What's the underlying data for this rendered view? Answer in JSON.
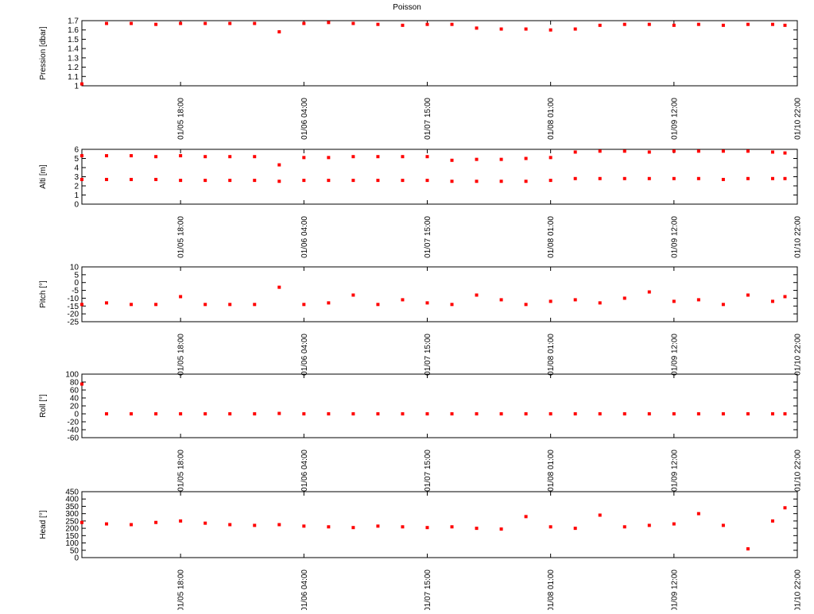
{
  "chart_data": [
    {
      "type": "scatter",
      "title": "Poisson",
      "ylabel": "Pression [dbar]",
      "x": [
        0.2,
        0.4,
        0.6,
        0.8,
        1.0,
        1.2,
        1.4,
        1.6,
        1.8,
        2.0,
        2.2,
        2.4,
        2.6,
        2.8,
        3.0,
        3.2,
        3.4,
        3.6,
        3.8,
        4.0,
        4.2,
        4.4,
        4.6,
        4.8,
        5.0,
        5.2,
        5.4,
        5.6,
        5.8,
        5.9
      ],
      "series": [
        {
          "color": "#ff0000",
          "values": [
            1.02,
            1.67,
            1.67,
            1.66,
            1.67,
            1.67,
            1.67,
            1.67,
            1.58,
            1.67,
            1.68,
            1.67,
            1.66,
            1.65,
            1.66,
            1.66,
            1.62,
            1.61,
            1.61,
            1.6,
            1.61,
            1.65,
            1.66,
            1.66,
            1.65,
            1.66,
            1.65,
            1.66,
            1.66,
            1.65
          ]
        }
      ],
      "xlim": [
        0.2,
        6
      ],
      "xticks": [
        {
          "value": 1,
          "label": "01/05 18:00"
        },
        {
          "value": 2,
          "label": "01/06 04:00"
        },
        {
          "value": 3,
          "label": "01/07 15:00"
        },
        {
          "value": 4,
          "label": "01/08 01:00"
        },
        {
          "value": 5,
          "label": "01/09 12:00"
        },
        {
          "value": 6,
          "label": "01/10 22:00"
        }
      ],
      "ylim": [
        1,
        1.7
      ],
      "yticks": [
        1,
        1.1,
        1.2,
        1.3,
        1.4,
        1.5,
        1.6,
        1.7
      ]
    },
    {
      "type": "scatter",
      "ylabel": "Alti [m]",
      "x": [
        0.2,
        0.4,
        0.6,
        0.8,
        1.0,
        1.2,
        1.4,
        1.6,
        1.8,
        2.0,
        2.2,
        2.4,
        2.6,
        2.8,
        3.0,
        3.2,
        3.4,
        3.6,
        3.8,
        4.0,
        4.2,
        4.4,
        4.6,
        4.8,
        5.0,
        5.2,
        5.4,
        5.6,
        5.8,
        5.9
      ],
      "series": [
        {
          "color": "#ff0000",
          "values": [
            5.3,
            5.3,
            5.3,
            5.2,
            5.3,
            5.2,
            5.2,
            5.2,
            4.3,
            5.1,
            5.1,
            5.2,
            5.2,
            5.2,
            5.2,
            4.8,
            4.9,
            4.9,
            5.0,
            5.1,
            5.7,
            5.8,
            5.8,
            5.7,
            5.8,
            5.8,
            5.8,
            5.8,
            5.7,
            5.6
          ]
        },
        {
          "color": "#ff0000",
          "values": [
            2.7,
            2.7,
            2.7,
            2.7,
            2.6,
            2.6,
            2.6,
            2.6,
            2.5,
            2.6,
            2.6,
            2.6,
            2.6,
            2.6,
            2.6,
            2.5,
            2.5,
            2.5,
            2.5,
            2.6,
            2.8,
            2.8,
            2.8,
            2.8,
            2.8,
            2.8,
            2.7,
            2.8,
            2.8,
            2.8
          ]
        }
      ],
      "xlim": [
        0.2,
        6
      ],
      "xticks": [
        {
          "value": 1,
          "label": "01/05 18:00"
        },
        {
          "value": 2,
          "label": "01/06 04:00"
        },
        {
          "value": 3,
          "label": "01/07 15:00"
        },
        {
          "value": 4,
          "label": "01/08 01:00"
        },
        {
          "value": 5,
          "label": "01/09 12:00"
        },
        {
          "value": 6,
          "label": "01/10 22:00"
        }
      ],
      "ylim": [
        0,
        6
      ],
      "yticks": [
        0,
        1,
        2,
        3,
        4,
        5,
        6
      ]
    },
    {
      "type": "scatter",
      "ylabel": "Pitch [°]",
      "x": [
        0.2,
        0.4,
        0.6,
        0.8,
        1.0,
        1.2,
        1.4,
        1.6,
        1.8,
        2.0,
        2.2,
        2.4,
        2.6,
        2.8,
        3.0,
        3.2,
        3.4,
        3.6,
        3.8,
        4.0,
        4.2,
        4.4,
        4.6,
        4.8,
        5.0,
        5.2,
        5.4,
        5.6,
        5.8,
        5.9
      ],
      "series": [
        {
          "color": "#ff0000",
          "values": [
            -14,
            -13,
            -14,
            -14,
            -9,
            -14,
            -14,
            -14,
            -3,
            -14,
            -13,
            -8,
            -14,
            -11,
            -13,
            -14,
            -8,
            -11,
            -14,
            -12,
            -11,
            -13,
            -10,
            -6,
            -12,
            -11,
            -14,
            -8,
            -12,
            -9
          ]
        }
      ],
      "xlim": [
        0.2,
        6
      ],
      "xticks": [
        {
          "value": 1,
          "label": "01/05 18:00"
        },
        {
          "value": 2,
          "label": "01/06 04:00"
        },
        {
          "value": 3,
          "label": "01/07 15:00"
        },
        {
          "value": 4,
          "label": "01/08 01:00"
        },
        {
          "value": 5,
          "label": "01/09 12:00"
        },
        {
          "value": 6,
          "label": "01/10 22:00"
        }
      ],
      "ylim": [
        -25,
        10
      ],
      "yticks": [
        -25,
        -20,
        -15,
        -10,
        -5,
        0,
        5,
        10
      ]
    },
    {
      "type": "scatter",
      "ylabel": "Roll [°]",
      "x": [
        0.2,
        0.4,
        0.6,
        0.8,
        1.0,
        1.2,
        1.4,
        1.6,
        1.8,
        2.0,
        2.2,
        2.4,
        2.6,
        2.8,
        3.0,
        3.2,
        3.4,
        3.6,
        3.8,
        4.0,
        4.2,
        4.4,
        4.6,
        4.8,
        5.0,
        5.2,
        5.4,
        5.6,
        5.8,
        5.9
      ],
      "series": [
        {
          "color": "#ff0000",
          "values": [
            75,
            0,
            0,
            0,
            0,
            0,
            0,
            0,
            1,
            0,
            0,
            0,
            0,
            0,
            0,
            0,
            0,
            0,
            0,
            0,
            0,
            0,
            0,
            0,
            0,
            0,
            0,
            0,
            0,
            0
          ]
        }
      ],
      "xlim": [
        0.2,
        6
      ],
      "xticks": [
        {
          "value": 1,
          "label": "01/05 18:00"
        },
        {
          "value": 2,
          "label": "01/06 04:00"
        },
        {
          "value": 3,
          "label": "01/07 15:00"
        },
        {
          "value": 4,
          "label": "01/08 01:00"
        },
        {
          "value": 5,
          "label": "01/09 12:00"
        },
        {
          "value": 6,
          "label": "01/10 22:00"
        }
      ],
      "ylim": [
        -60,
        100
      ],
      "yticks": [
        -60,
        -40,
        -20,
        0,
        20,
        40,
        60,
        80,
        100
      ]
    },
    {
      "type": "scatter",
      "ylabel": "Head [°]",
      "x": [
        0.2,
        0.4,
        0.6,
        0.8,
        1.0,
        1.2,
        1.4,
        1.6,
        1.8,
        2.0,
        2.2,
        2.4,
        2.6,
        2.8,
        3.0,
        3.2,
        3.4,
        3.6,
        3.8,
        4.0,
        4.2,
        4.4,
        4.6,
        4.8,
        5.0,
        5.2,
        5.4,
        5.6,
        5.8,
        5.9
      ],
      "series": [
        {
          "color": "#ff0000",
          "values": [
            240,
            230,
            225,
            240,
            250,
            235,
            225,
            220,
            225,
            215,
            210,
            205,
            215,
            210,
            205,
            210,
            200,
            195,
            280,
            210,
            200,
            290,
            210,
            220,
            230,
            300,
            220,
            60,
            250,
            340
          ]
        }
      ],
      "xlim": [
        0.2,
        6
      ],
      "xticks": [
        {
          "value": 1,
          "label": "01/05 18:00"
        },
        {
          "value": 2,
          "label": "01/06 04:00"
        },
        {
          "value": 3,
          "label": "01/07 15:00"
        },
        {
          "value": 4,
          "label": "01/08 01:00"
        },
        {
          "value": 5,
          "label": "01/09 12:00"
        },
        {
          "value": 6,
          "label": "01/10 22:00"
        }
      ],
      "ylim": [
        0,
        450
      ],
      "yticks": [
        0,
        50,
        100,
        150,
        200,
        250,
        300,
        350,
        400,
        450
      ]
    }
  ]
}
